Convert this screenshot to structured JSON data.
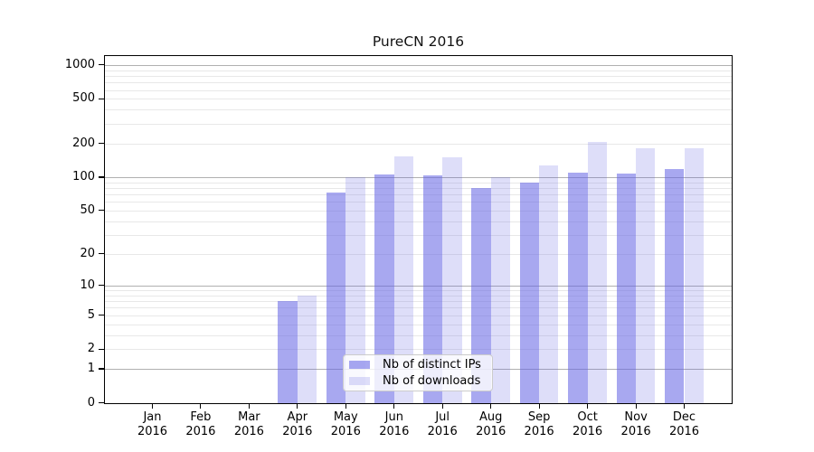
{
  "chart_data": {
    "type": "bar",
    "title": "PureCN 2016",
    "categories": [
      "Jan",
      "Feb",
      "Mar",
      "Apr",
      "May",
      "Jun",
      "Jul",
      "Aug",
      "Sep",
      "Oct",
      "Nov",
      "Dec"
    ],
    "x_year_suffix": "2016",
    "series": [
      {
        "name": "Nb of distinct IPs",
        "values": [
          0,
          0,
          0,
          7,
          73,
          105,
          103,
          80,
          90,
          110,
          108,
          118
        ]
      },
      {
        "name": "Nb of downloads",
        "values": [
          0,
          0,
          0,
          8,
          100,
          155,
          152,
          100,
          128,
          205,
          180,
          183
        ]
      }
    ],
    "yscale": "log1p",
    "ytick_values": [
      0,
      1,
      2,
      5,
      10,
      20,
      50,
      100,
      200,
      500,
      1000
    ],
    "ylim": [
      0,
      1200
    ],
    "xlabel": "",
    "ylabel": "",
    "grid": "horizontal log-decade gridlines",
    "legend_position": "inside, lower center-left"
  },
  "colors": {
    "bar_ips": "rgba(99,99,228,0.56)",
    "bar_downloads": "rgba(99,99,228,0.21)",
    "grid_major": "#b0b0b0",
    "grid_minor": "#e8e8e8",
    "axis": "#000000",
    "legend_border": "#cccccc",
    "legend_background": "rgba(255,255,255,0.8)"
  }
}
